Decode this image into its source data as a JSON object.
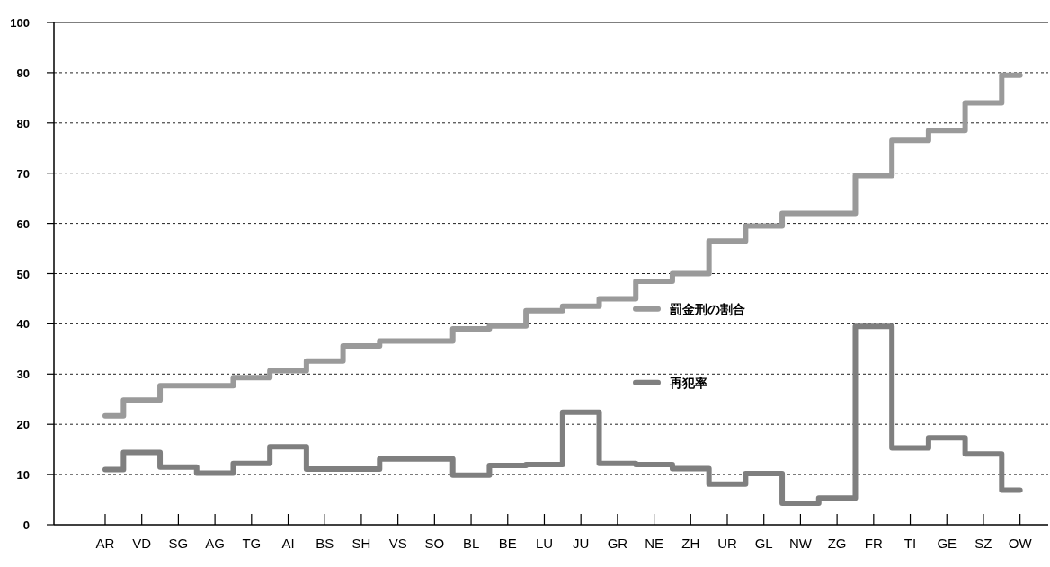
{
  "chart_data": {
    "type": "step",
    "categories": [
      "AR",
      "VD",
      "SG",
      "AG",
      "TG",
      "AI",
      "BS",
      "SH",
      "VS",
      "SO",
      "BL",
      "BE",
      "LU",
      "JU",
      "GR",
      "NE",
      "ZH",
      "UR",
      "GL",
      "NW",
      "ZG",
      "FR",
      "TI",
      "GE",
      "SZ",
      "OW"
    ],
    "series": [
      {
        "name": "罰金刑の割合",
        "color": "#9a9a9a",
        "values": [
          21.7,
          24.8,
          27.7,
          27.7,
          29.3,
          30.7,
          32.6,
          35.6,
          36.6,
          36.6,
          39,
          39.6,
          42.6,
          43.5,
          45,
          48.5,
          50,
          56.5,
          59.5,
          62,
          62,
          69.5,
          76.5,
          78.5,
          84,
          89.5
        ]
      },
      {
        "name": "再犯率",
        "color": "#7f7f7f",
        "values": [
          11,
          14.4,
          11.5,
          10.3,
          12.2,
          15.5,
          11.1,
          11.1,
          13.1,
          13.1,
          9.9,
          11.8,
          12,
          22.4,
          12.2,
          12,
          11.2,
          8.1,
          10.2,
          4.3,
          5.3,
          39.5,
          15.3,
          17.3,
          14.1,
          6.9
        ]
      }
    ],
    "ylim": [
      0,
      100
    ],
    "yticks": [
      0,
      10,
      20,
      30,
      40,
      50,
      60,
      70,
      80,
      90,
      100
    ],
    "grid": "y",
    "legend": "center right"
  }
}
